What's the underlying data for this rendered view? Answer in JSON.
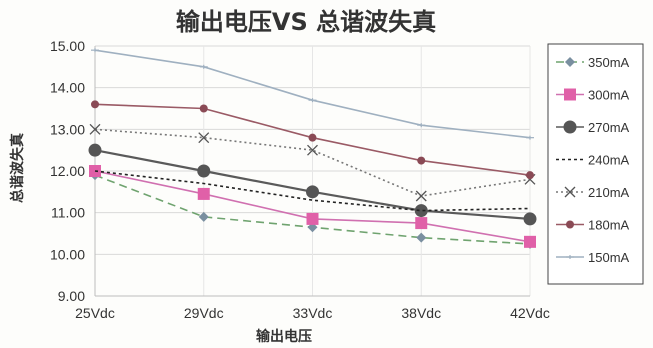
{
  "chart_data": {
    "type": "line",
    "title": "输出电压VS 总谐波失真",
    "xlabel": "输出电压",
    "ylabel": "总谐波失真",
    "categories": [
      "25Vdc",
      "29Vdc",
      "33Vdc",
      "38Vdc",
      "42Vdc"
    ],
    "ylim": [
      9.0,
      15.0
    ],
    "yticks": [
      "9.00",
      "10.00",
      "11.00",
      "12.00",
      "13.00",
      "14.00",
      "15.00"
    ],
    "grid": true,
    "legend_position": "right",
    "series": [
      {
        "name": "350mA",
        "values": [
          11.9,
          10.9,
          10.65,
          10.4,
          10.25
        ],
        "color": "#7a8fa0",
        "marker": "diamond",
        "dash": "8,5",
        "line_color": "#6fa36f"
      },
      {
        "name": "300mA",
        "values": [
          12.0,
          11.45,
          10.85,
          10.75,
          10.3
        ],
        "color": "#e060a8",
        "marker": "square",
        "dash": "",
        "line_color": "#d070b0"
      },
      {
        "name": "270mA",
        "values": [
          12.5,
          12.0,
          11.5,
          11.05,
          10.85
        ],
        "color": "#555555",
        "marker": "circle",
        "dash": "",
        "line_color": "#5a5a5a"
      },
      {
        "name": "240mA",
        "values": [
          12.0,
          11.7,
          11.3,
          11.05,
          11.1
        ],
        "color": "#222222",
        "marker": "none",
        "dash": "3,3",
        "line_color": "#222222"
      },
      {
        "name": "210mA",
        "values": [
          13.0,
          12.8,
          12.5,
          11.4,
          11.8
        ],
        "color": "#555555",
        "marker": "x",
        "dash": "2,3",
        "line_color": "#777777"
      },
      {
        "name": "180mA",
        "values": [
          13.6,
          13.5,
          12.8,
          12.25,
          11.9
        ],
        "color": "#8a4a55",
        "marker": "circle-small",
        "dash": "",
        "line_color": "#9a5a65"
      },
      {
        "name": "150mA",
        "values": [
          14.9,
          14.5,
          13.7,
          13.1,
          12.8
        ],
        "color": "#9fb0c0",
        "marker": "plus",
        "dash": "",
        "line_color": "#9fb0c0"
      }
    ]
  }
}
